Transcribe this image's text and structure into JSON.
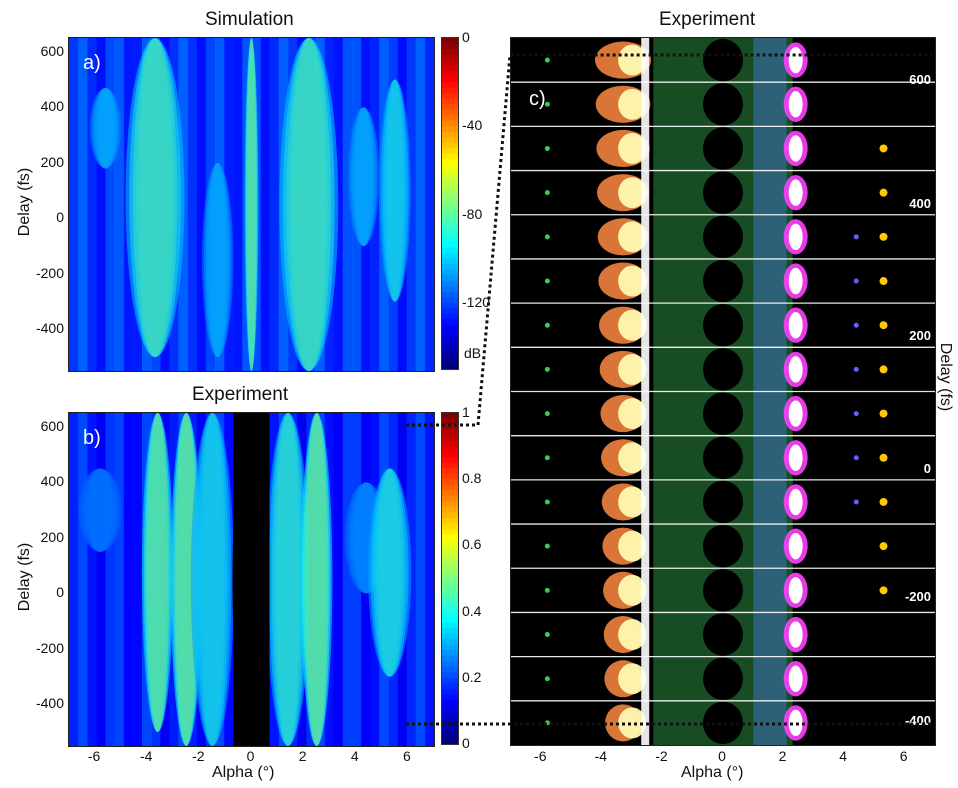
{
  "colors": {
    "jet": [
      "#00007f",
      "#0000ff",
      "#007fff",
      "#00ffff",
      "#7fff7f",
      "#ffff00",
      "#ff7f00",
      "#ff0000",
      "#7f0000"
    ],
    "background": "#0000c8",
    "dotted_line": "#000000"
  },
  "chart_data": [
    {
      "panel": "a)",
      "type": "heatmap",
      "title": "Simulation",
      "xlabel": "Alpha (°)",
      "ylabel": "Delay (fs)",
      "xlim": [
        -7,
        7
      ],
      "ylim": [
        -550,
        650
      ],
      "xticks": [],
      "yticks": [
        "600",
        "400",
        "200",
        "0",
        "-200",
        "-400"
      ],
      "colorbar": {
        "label": "dB",
        "ticks": [
          "0",
          "-40",
          "-80",
          "-120"
        ],
        "range": [
          -150,
          0
        ]
      },
      "features": [
        {
          "alpha": -5.6,
          "delay_range": [
            180,
            470
          ],
          "level": "mid"
        },
        {
          "alpha": -3.7,
          "delay_range": [
            -500,
            650
          ],
          "level": "high"
        },
        {
          "alpha": -1.3,
          "delay_range": [
            -500,
            200
          ],
          "level": "mid"
        },
        {
          "alpha": 0.0,
          "delay_range": [
            -550,
            650
          ],
          "level": "max"
        },
        {
          "alpha": 2.2,
          "delay_range": [
            -550,
            650
          ],
          "level": "high"
        },
        {
          "alpha": 4.3,
          "delay_range": [
            -100,
            400
          ],
          "level": "mid"
        },
        {
          "alpha": 5.5,
          "delay_range": [
            -300,
            500
          ],
          "level": "mid-high"
        }
      ]
    },
    {
      "panel": "b)",
      "type": "heatmap",
      "title": "Experiment",
      "xlabel": "Alpha (°)",
      "ylabel": "Delay (fs)",
      "xlim": [
        -7,
        7
      ],
      "ylim": [
        -550,
        650
      ],
      "xticks": [
        "-6",
        "-4",
        "-2",
        "0",
        "2",
        "4",
        "6"
      ],
      "yticks": [
        "600",
        "400",
        "200",
        "0",
        "-200",
        "-400"
      ],
      "colorbar": {
        "label": "",
        "ticks": [
          "1",
          "0.8",
          "0.6",
          "0.4",
          "0.2",
          "0"
        ],
        "range": [
          0,
          1
        ]
      },
      "features": [
        {
          "alpha": -5.8,
          "delay_range": [
            150,
            450
          ],
          "level": 0.3
        },
        {
          "alpha": -3.6,
          "delay_range": [
            -500,
            650
          ],
          "level": 0.95
        },
        {
          "alpha": -2.5,
          "delay_range": [
            -550,
            650
          ],
          "level": 1.0
        },
        {
          "alpha": -1.5,
          "delay_range": [
            -550,
            650
          ],
          "level": 0.6
        },
        {
          "alpha": 0.0,
          "delay_range": [
            -550,
            650
          ],
          "level": 0.0
        },
        {
          "alpha": 1.4,
          "delay_range": [
            -550,
            650
          ],
          "level": 0.7
        },
        {
          "alpha": 2.5,
          "delay_range": [
            -550,
            650
          ],
          "level": 1.0
        },
        {
          "alpha": 4.4,
          "delay_range": [
            0,
            400
          ],
          "level": 0.35
        },
        {
          "alpha": 5.3,
          "delay_range": [
            -300,
            450
          ],
          "level": 0.65
        }
      ]
    },
    {
      "panel": "c)",
      "type": "image",
      "title": "Experiment",
      "xlabel": "Alpha (°)",
      "ylabel": "Delay (fs)",
      "xlim": [
        -7,
        7
      ],
      "xticks": [
        "-6",
        "-4",
        "-2",
        "0",
        "2",
        "4",
        "6"
      ],
      "delay_labels": [
        "600",
        "400",
        "200",
        "0",
        "-200",
        "-400"
      ],
      "strip_count": 16
    }
  ]
}
